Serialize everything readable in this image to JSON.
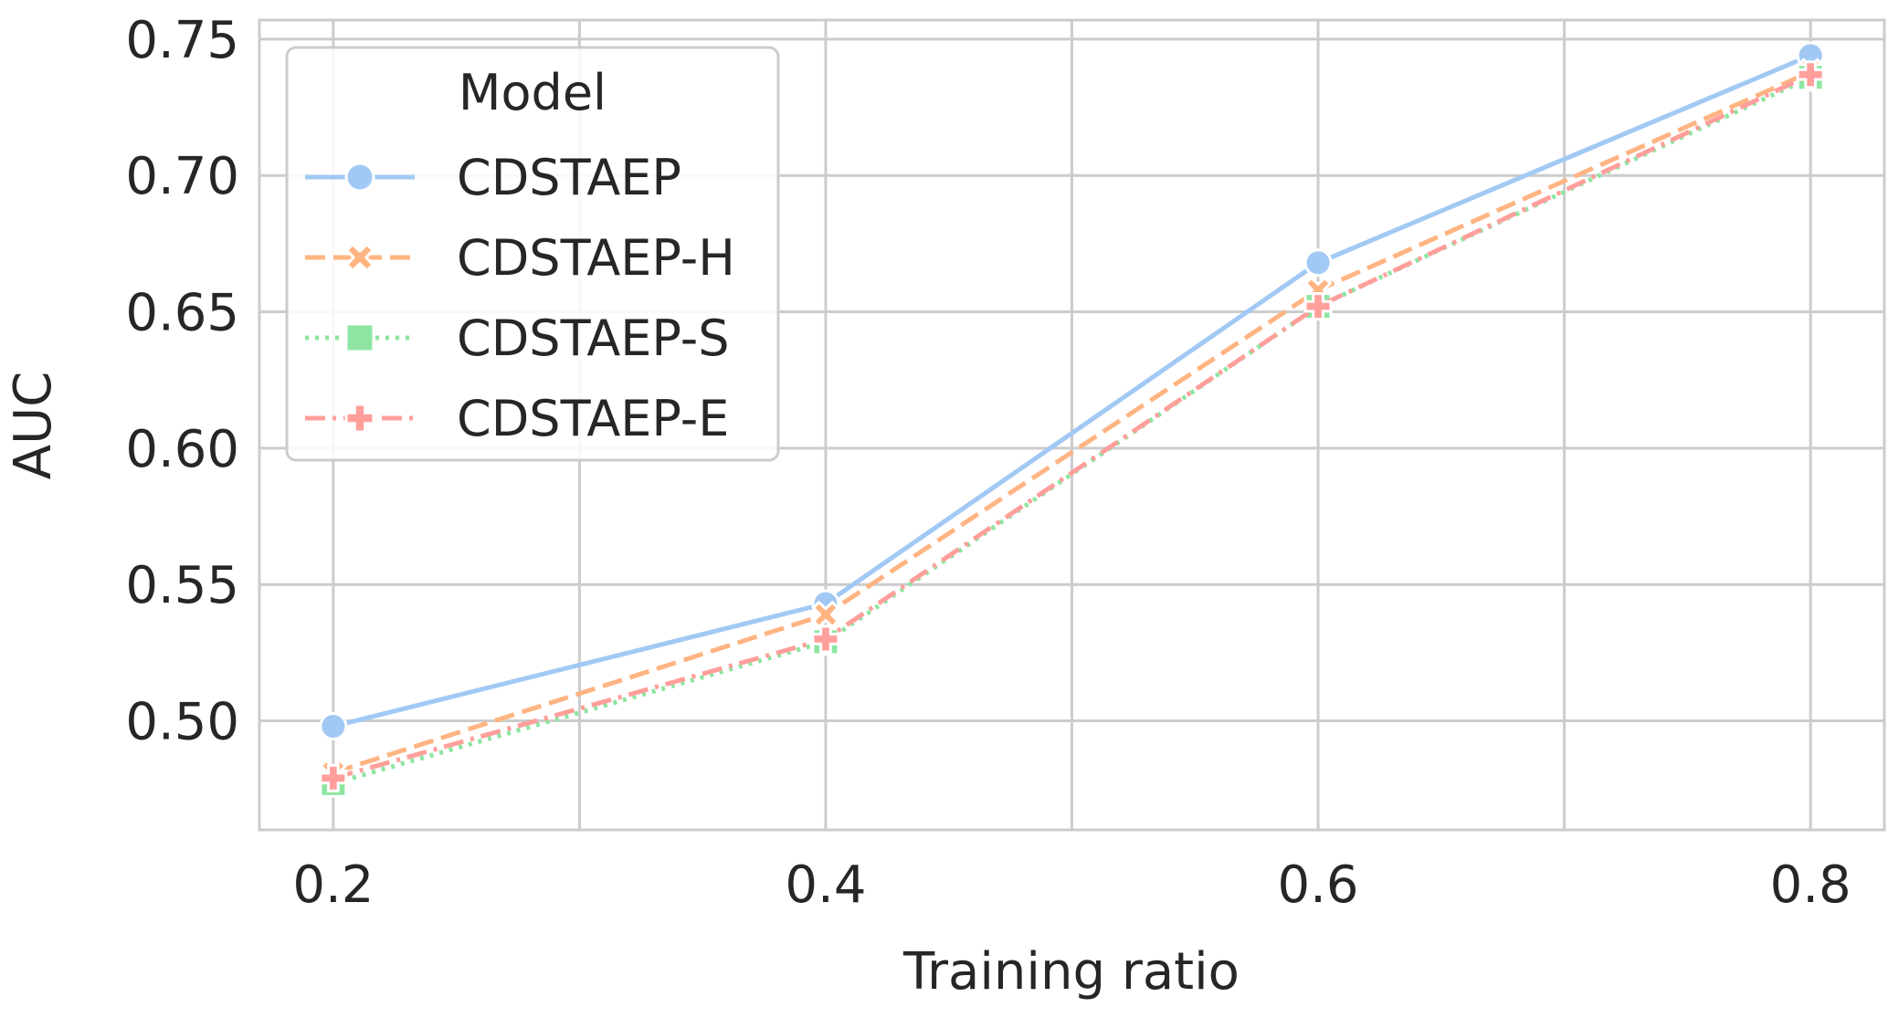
{
  "chart_data": {
    "type": "line",
    "title": "",
    "xlabel": "Training ratio",
    "ylabel": "AUC",
    "x": [
      0.2,
      0.4,
      0.6,
      0.8
    ],
    "xticks": [
      "0.2",
      "0.4",
      "0.6",
      "0.8"
    ],
    "xlim": [
      0.17,
      0.83
    ],
    "yticks": [
      "0.50",
      "0.55",
      "0.60",
      "0.65",
      "0.70",
      "0.75"
    ],
    "ylim": [
      0.46,
      0.757
    ],
    "grid": true,
    "legend": {
      "title": "Model",
      "position": "top-left"
    },
    "series": [
      {
        "name": "CDSTAEP",
        "values": [
          0.498,
          0.543,
          0.668,
          0.744
        ],
        "color": "#a1c9f4",
        "marker": "circle",
        "dash": "solid"
      },
      {
        "name": "CDSTAEP-H",
        "values": [
          0.481,
          0.539,
          0.658,
          0.738
        ],
        "color": "#ffb482",
        "marker": "x",
        "dash": "dashed"
      },
      {
        "name": "CDSTAEP-S",
        "values": [
          0.477,
          0.529,
          0.652,
          0.736
        ],
        "color": "#8de5a1",
        "marker": "square",
        "dash": "dotted"
      },
      {
        "name": "CDSTAEP-E",
        "values": [
          0.479,
          0.53,
          0.652,
          0.737
        ],
        "color": "#ff9f9b",
        "marker": "plus",
        "dash": "dashdot"
      }
    ]
  }
}
